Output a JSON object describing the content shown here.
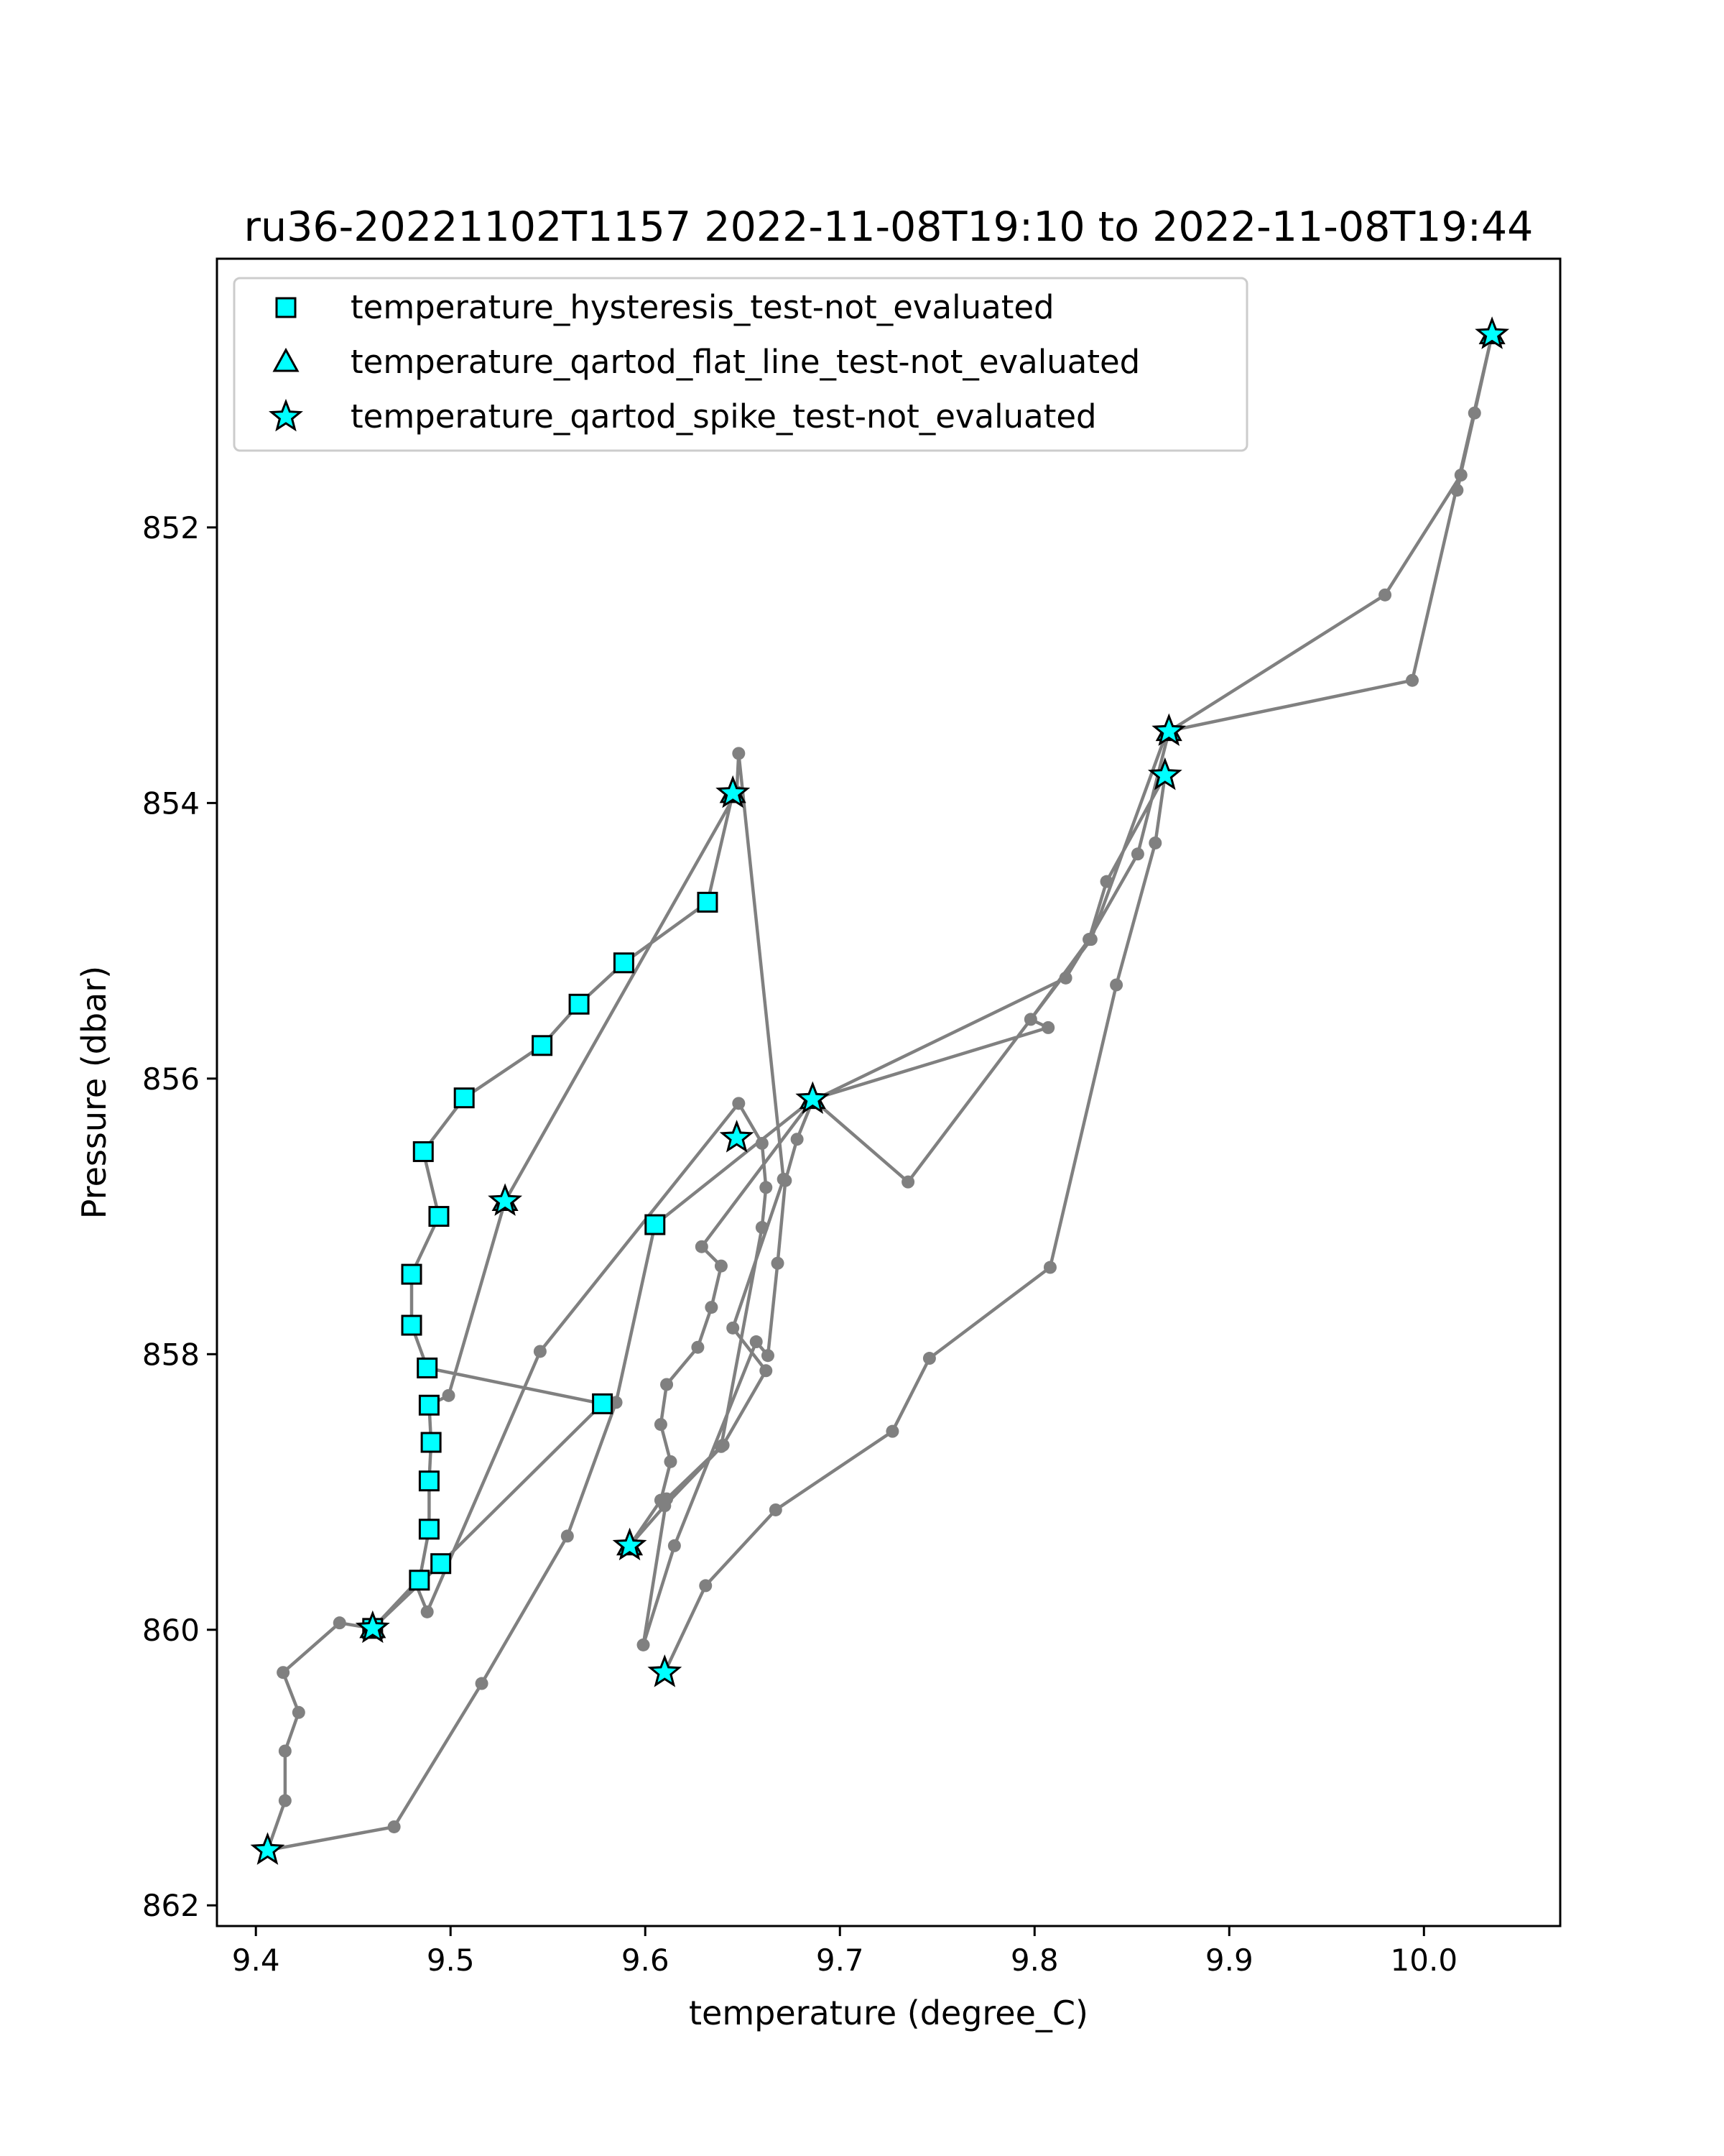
{
  "chart_data": {
    "type": "line",
    "title": "ru36-20221102T1157 2022-11-08T19:10 to 2022-11-08T19:44",
    "xlabel": "temperature (degree_C)",
    "ylabel": "Pressure (dbar)",
    "xlim": [
      9.38,
      10.07
    ],
    "ylim": [
      862.15,
      850.05
    ],
    "y_inverted": true,
    "xticks": [
      9.4,
      9.5,
      9.6,
      9.7,
      9.8,
      9.9,
      10.0
    ],
    "xtick_labels": [
      "9.4",
      "9.5",
      "9.6",
      "9.7",
      "9.8",
      "9.9",
      "10.0"
    ],
    "yticks": [
      852,
      854,
      856,
      858,
      860,
      862
    ],
    "ytick_labels": [
      "852",
      "854",
      "856",
      "858",
      "860",
      "862"
    ],
    "grid": false,
    "legend_position": "top-left",
    "line_color": "#808080",
    "marker_color": "#00ffff",
    "profile": {
      "x": [
        9.61,
        9.631,
        9.667,
        9.727,
        9.746,
        9.808,
        9.842,
        9.862,
        9.867,
        9.837,
        9.828,
        9.816,
        9.686,
        9.678,
        9.672,
        9.668,
        9.663,
        9.657,
        9.615,
        9.599,
        9.611,
        9.639,
        9.66,
        9.662,
        9.66,
        9.648,
        9.546,
        9.488,
        9.482,
        9.46,
        9.443,
        9.414,
        9.422,
        9.415,
        9.415,
        9.406,
        9.471,
        9.516,
        9.56,
        9.585,
        9.605,
        9.686,
        9.807,
        9.798,
        9.828,
        9.853,
        9.869,
        9.98,
        10.019,
        10.017,
        10.026,
        10.035,
        9.994,
        9.868,
        9.829,
        9.735,
        9.686,
        9.629,
        9.639,
        9.634,
        9.627,
        9.611,
        9.608,
        9.613,
        9.608,
        9.592,
        9.61,
        9.64,
        9.662,
        9.645,
        9.671,
        9.648,
        9.647,
        9.528,
        9.499,
        9.489,
        9.49,
        9.489,
        9.489,
        9.484,
        9.46,
        9.495,
        9.578,
        9.488,
        9.48,
        9.48,
        9.494,
        9.486,
        9.507,
        9.547,
        9.566,
        9.589,
        9.632,
        9.645
      ],
      "y": [
        860.31,
        859.68,
        859.13,
        858.56,
        858.03,
        857.37,
        855.32,
        854.29,
        853.8,
        854.57,
        854.99,
        855.27,
        856.16,
        856.44,
        856.74,
        857.34,
        858.01,
        857.91,
        859.39,
        860.11,
        859.05,
        858.67,
        857.08,
        856.79,
        856.47,
        856.18,
        857.98,
        859.87,
        859.66,
        859.99,
        859.95,
        860.31,
        860.6,
        860.88,
        861.24,
        861.6,
        861.43,
        860.39,
        859.32,
        858.35,
        857.06,
        856.15,
        855.63,
        855.57,
        854.99,
        854.37,
        853.48,
        852.49,
        851.62,
        851.73,
        851.17,
        850.6,
        853.11,
        853.48,
        854.99,
        856.75,
        856.15,
        857.22,
        857.36,
        857.66,
        857.95,
        858.22,
        858.51,
        858.78,
        859.06,
        859.39,
        859.1,
        858.66,
        858.12,
        857.81,
        856.73,
        853.64,
        853.92,
        856.89,
        858.3,
        858.37,
        858.64,
        858.92,
        859.27,
        859.64,
        859.99,
        859.52,
        858.36,
        858.1,
        857.79,
        857.42,
        857.0,
        856.53,
        856.14,
        855.76,
        855.46,
        855.16,
        854.72,
        853.93
      ]
    },
    "series": [
      {
        "name": "temperature_hysteresis_test-not_evaluated",
        "marker": "square",
        "x": [
          9.495,
          9.578,
          9.488,
          9.48,
          9.48,
          9.494,
          9.486,
          9.507,
          9.547,
          9.566,
          9.589,
          9.632,
          9.605,
          9.489,
          9.49,
          9.489,
          9.489,
          9.484,
          9.46
        ],
        "y": [
          859.52,
          858.36,
          858.1,
          857.79,
          857.42,
          857.0,
          856.53,
          856.14,
          855.76,
          855.46,
          855.16,
          854.72,
          857.06,
          858.37,
          858.64,
          858.92,
          859.27,
          859.64,
          859.99
        ]
      },
      {
        "name": "temperature_qartod_flat_line_test-not_evaluated",
        "marker": "triangle",
        "x": [
          9.46,
          9.528,
          9.592,
          9.645,
          9.686,
          9.869,
          10.035
        ],
        "y": [
          859.99,
          856.89,
          859.39,
          853.93,
          856.15,
          853.48,
          850.6
        ]
      },
      {
        "name": "temperature_qartod_spike_test-not_evaluated",
        "marker": "star",
        "x": [
          9.406,
          9.46,
          9.528,
          9.61,
          9.592,
          9.645,
          9.647,
          9.686,
          9.867,
          9.869,
          10.035
        ],
        "y": [
          861.6,
          859.99,
          856.89,
          860.31,
          859.39,
          853.93,
          856.43,
          856.15,
          853.8,
          853.48,
          850.6
        ]
      }
    ]
  }
}
